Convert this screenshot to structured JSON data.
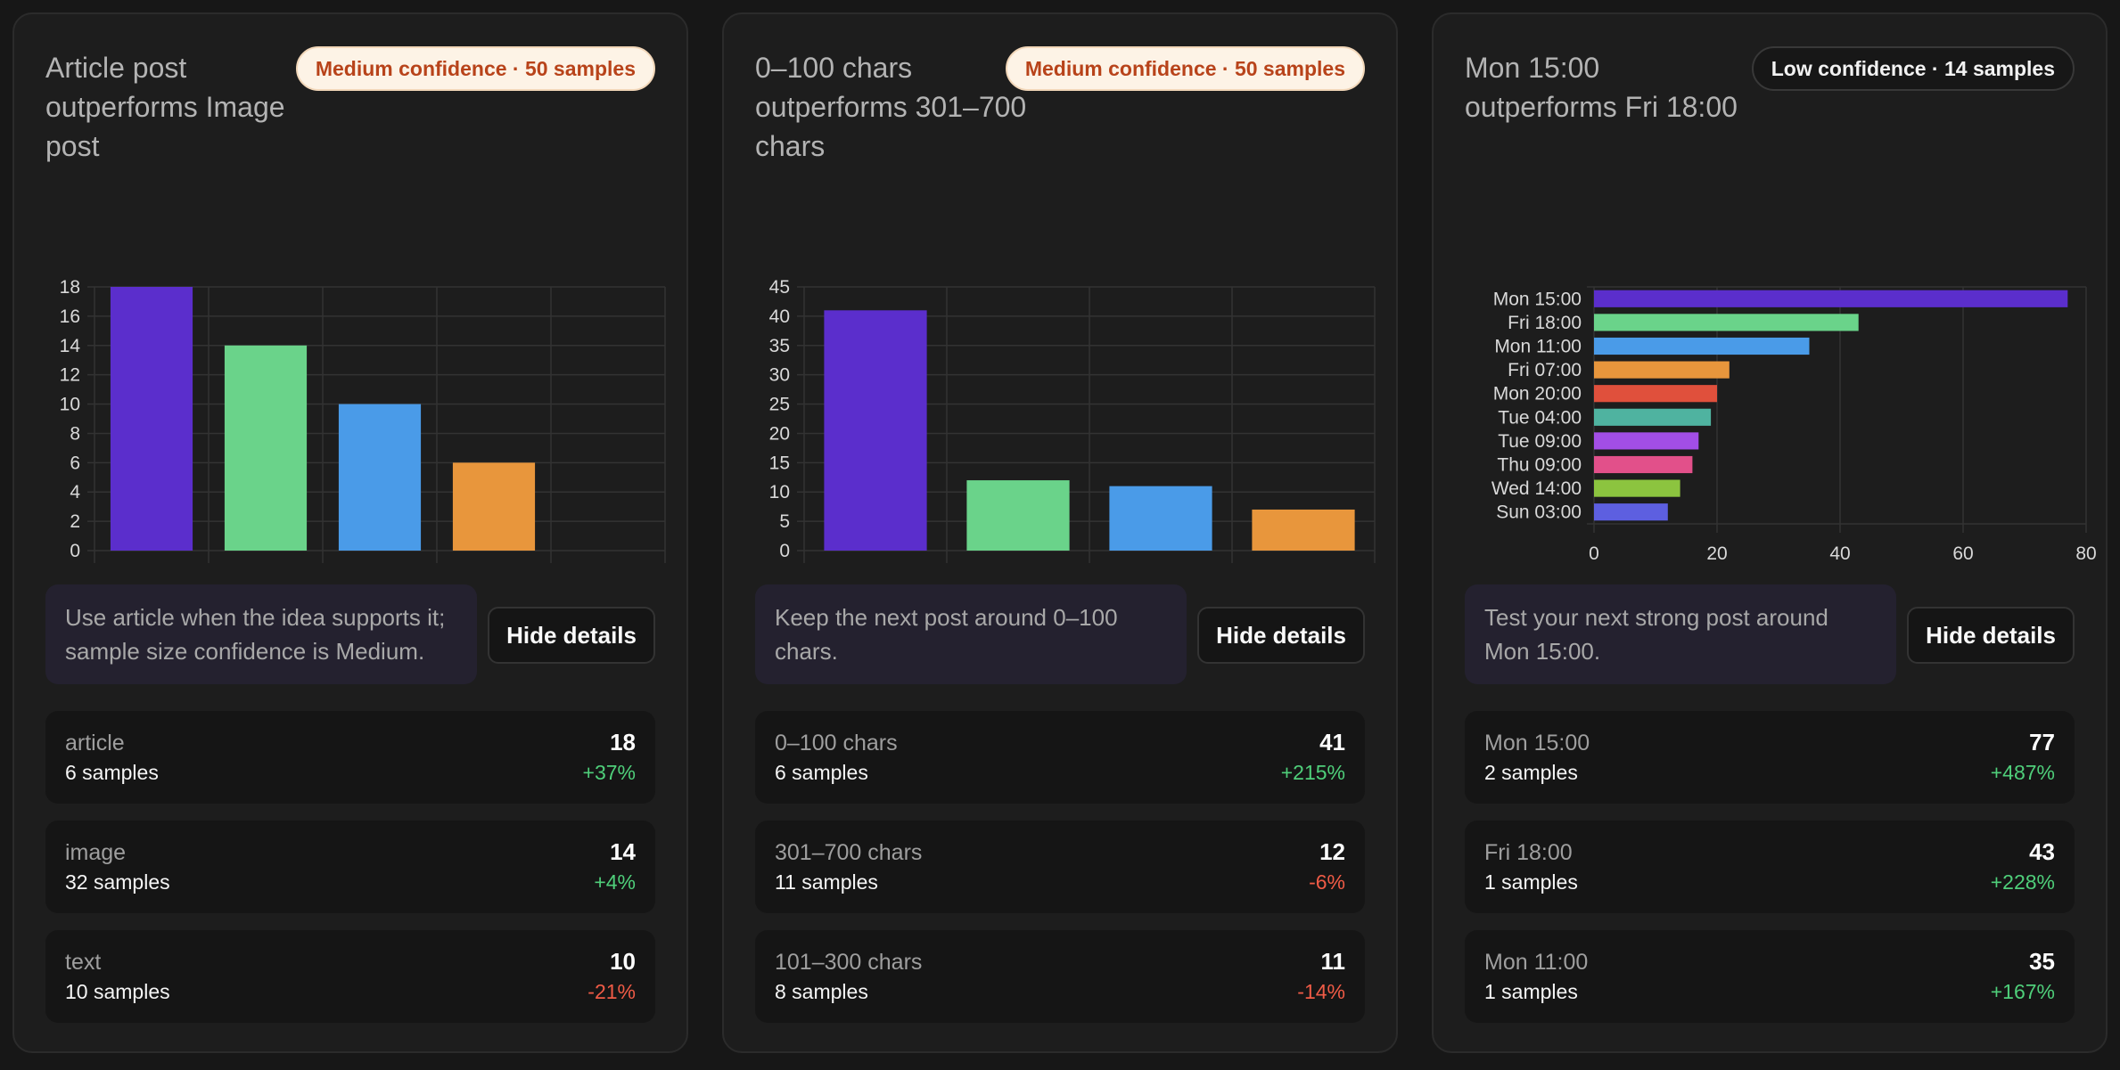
{
  "cards": [
    {
      "title": "Article post outperforms Image post",
      "badge": "Medium confidence · 50 samples",
      "confidence": "medium",
      "recommendation": "Use article when the idea supports it; sample size confidence is Medium.",
      "hide_details_label": "Hide details",
      "rows": [
        {
          "name": "article",
          "samples": "6 samples",
          "value": "18",
          "change": "+37%",
          "direction": "pos"
        },
        {
          "name": "image",
          "samples": "32 samples",
          "value": "14",
          "change": "+4%",
          "direction": "pos"
        },
        {
          "name": "text",
          "samples": "10 samples",
          "value": "10",
          "change": "-21%",
          "direction": "neg"
        }
      ]
    },
    {
      "title": "0–100 chars outperforms 301–700 chars",
      "badge": "Medium confidence · 50 samples",
      "confidence": "medium",
      "recommendation": "Keep the next post around 0–100 chars.",
      "hide_details_label": "Hide details",
      "rows": [
        {
          "name": "0–100 chars",
          "samples": "6 samples",
          "value": "41",
          "change": "+215%",
          "direction": "pos"
        },
        {
          "name": "301–700 chars",
          "samples": "11 samples",
          "value": "12",
          "change": "-6%",
          "direction": "neg"
        },
        {
          "name": "101–300 chars",
          "samples": "8 samples",
          "value": "11",
          "change": "-14%",
          "direction": "neg"
        }
      ]
    },
    {
      "title": "Mon 15:00 outperforms Fri 18:00",
      "badge": "Low confidence · 14 samples",
      "confidence": "low",
      "recommendation": "Test your next strong post around Mon 15:00.",
      "hide_details_label": "Hide details",
      "rows": [
        {
          "name": "Mon 15:00",
          "samples": "2 samples",
          "value": "77",
          "change": "+487%",
          "direction": "pos"
        },
        {
          "name": "Fri 18:00",
          "samples": "1 samples",
          "value": "43",
          "change": "+228%",
          "direction": "pos"
        },
        {
          "name": "Mon 11:00",
          "samples": "1 samples",
          "value": "35",
          "change": "+167%",
          "direction": "pos"
        }
      ]
    }
  ],
  "chart_data": [
    {
      "type": "bar",
      "orientation": "vertical",
      "categories": [
        "",
        "",
        "",
        "",
        ""
      ],
      "values": [
        18,
        14,
        10,
        6,
        null
      ],
      "colors": [
        "#5b2ecc",
        "#6ad38a",
        "#4a9be8",
        "#e8963c"
      ],
      "ylim": [
        0,
        18
      ],
      "yticks": [
        0,
        2,
        4,
        6,
        8,
        10,
        12,
        14,
        16,
        18
      ],
      "grid": true,
      "legend": "none"
    },
    {
      "type": "bar",
      "orientation": "vertical",
      "categories": [
        "",
        "",
        "",
        ""
      ],
      "values": [
        41,
        12,
        11,
        7
      ],
      "colors": [
        "#5b2ecc",
        "#6ad38a",
        "#4a9be8",
        "#e8963c"
      ],
      "ylim": [
        0,
        45
      ],
      "yticks": [
        0,
        5,
        10,
        15,
        20,
        25,
        30,
        35,
        40,
        45
      ],
      "grid": true,
      "legend": "none"
    },
    {
      "type": "bar",
      "orientation": "horizontal",
      "categories": [
        "Mon 15:00",
        "Fri 18:00",
        "Mon 11:00",
        "Fri 07:00",
        "Mon 20:00",
        "Tue 04:00",
        "Tue 09:00",
        "Thu 09:00",
        "Wed 14:00",
        "Sun 03:00"
      ],
      "values": [
        77,
        43,
        35,
        22,
        20,
        19,
        17,
        16,
        14,
        12
      ],
      "colors": [
        "#5b2ecc",
        "#6ad38a",
        "#4a9be8",
        "#e8963c",
        "#e0503c",
        "#4fb3a0",
        "#a24ee6",
        "#e2508a",
        "#8cc43f",
        "#5d5fe0"
      ],
      "xlim": [
        0,
        80
      ],
      "xticks": [
        0,
        20,
        40,
        60,
        80
      ],
      "grid": true,
      "legend": "none"
    }
  ]
}
